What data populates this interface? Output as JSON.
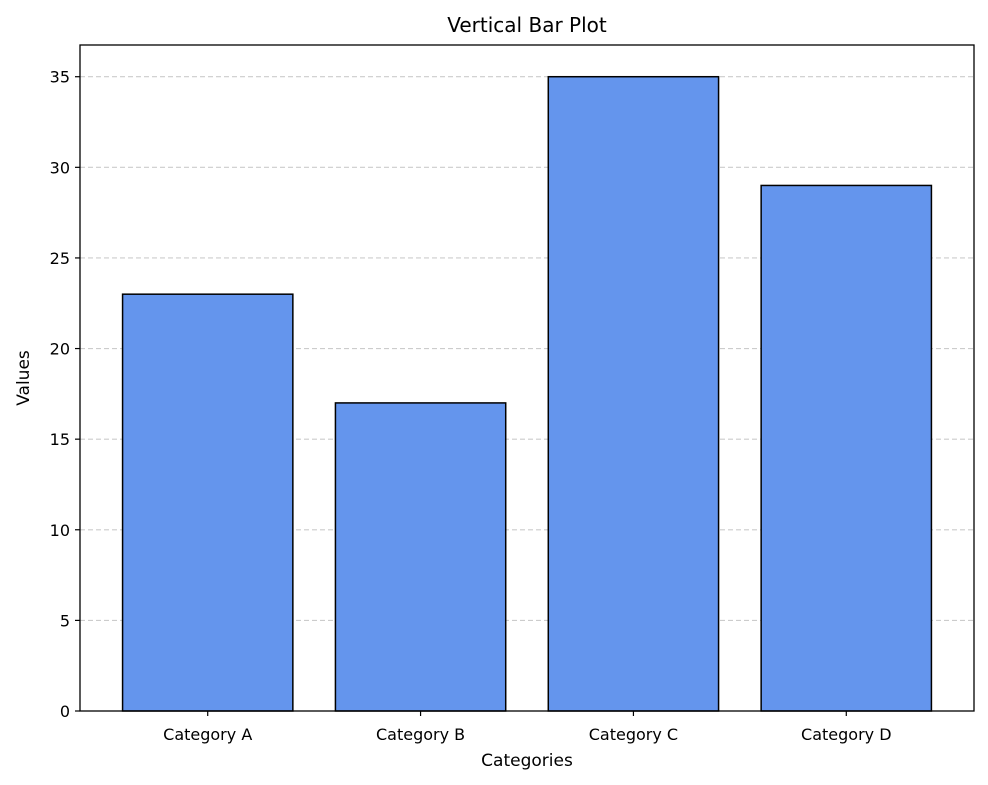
{
  "chart_data": {
    "type": "bar",
    "title": "Vertical Bar Plot",
    "xlabel": "Categories",
    "ylabel": "Values",
    "categories": [
      "Category A",
      "Category B",
      "Category C",
      "Category D"
    ],
    "values": [
      23,
      17,
      35,
      29
    ],
    "ylim": [
      0,
      36.75
    ],
    "yticks": [
      0,
      5,
      10,
      15,
      20,
      25,
      30,
      35
    ],
    "grid": {
      "y": true,
      "x": false,
      "style": "dashed"
    },
    "colors": {
      "bar_fill": "#6495ED",
      "bar_edge": "#000000",
      "grid": "#cccccc",
      "axes": "#000000"
    }
  }
}
